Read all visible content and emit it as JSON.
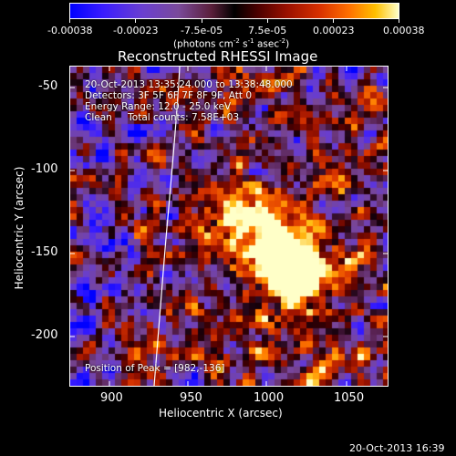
{
  "colorbar": {
    "tick_labels": [
      "-0.00038",
      "-0.00023",
      "-7.5e-05",
      "7.5e-05",
      "0.00023",
      "0.00038"
    ],
    "unit_main": "(photons cm",
    "unit_sup1": "-2",
    "unit_mid": " s",
    "unit_sup2": "-1",
    "unit_end": " asec",
    "unit_sup3": "-2",
    "unit_close": ")",
    "range": [
      -0.00038,
      0.00038
    ]
  },
  "title": "Reconstructed RHESSI Image",
  "info": {
    "time_range": "20-Oct-2013 13:35:24.000 to 13:38:48.000",
    "detectors": "Detectors: 3F 5F 6F 7F 8F 9F, Att 0",
    "energy": "Energy Range: 12.0 - 25.0 keV",
    "method": "Clean",
    "total_counts": "Total counts: 7.58E+03",
    "peak": "Position of Peak = [982,-136]"
  },
  "axes": {
    "xlabel": "Heliocentric X (arcsec)",
    "ylabel": "Heliocentric Y (arcsec)",
    "xticks": [
      "900",
      "950",
      "1000",
      "1050"
    ],
    "yticks": [
      "-50",
      "-100",
      "-150",
      "-200"
    ],
    "xlim": [
      880,
      1072
    ],
    "ylim": [
      -232,
      -36
    ]
  },
  "footer_timestamp": "20-Oct-2013 16:39",
  "colors": {
    "background": "#000000",
    "foreground": "#ffffff"
  }
}
